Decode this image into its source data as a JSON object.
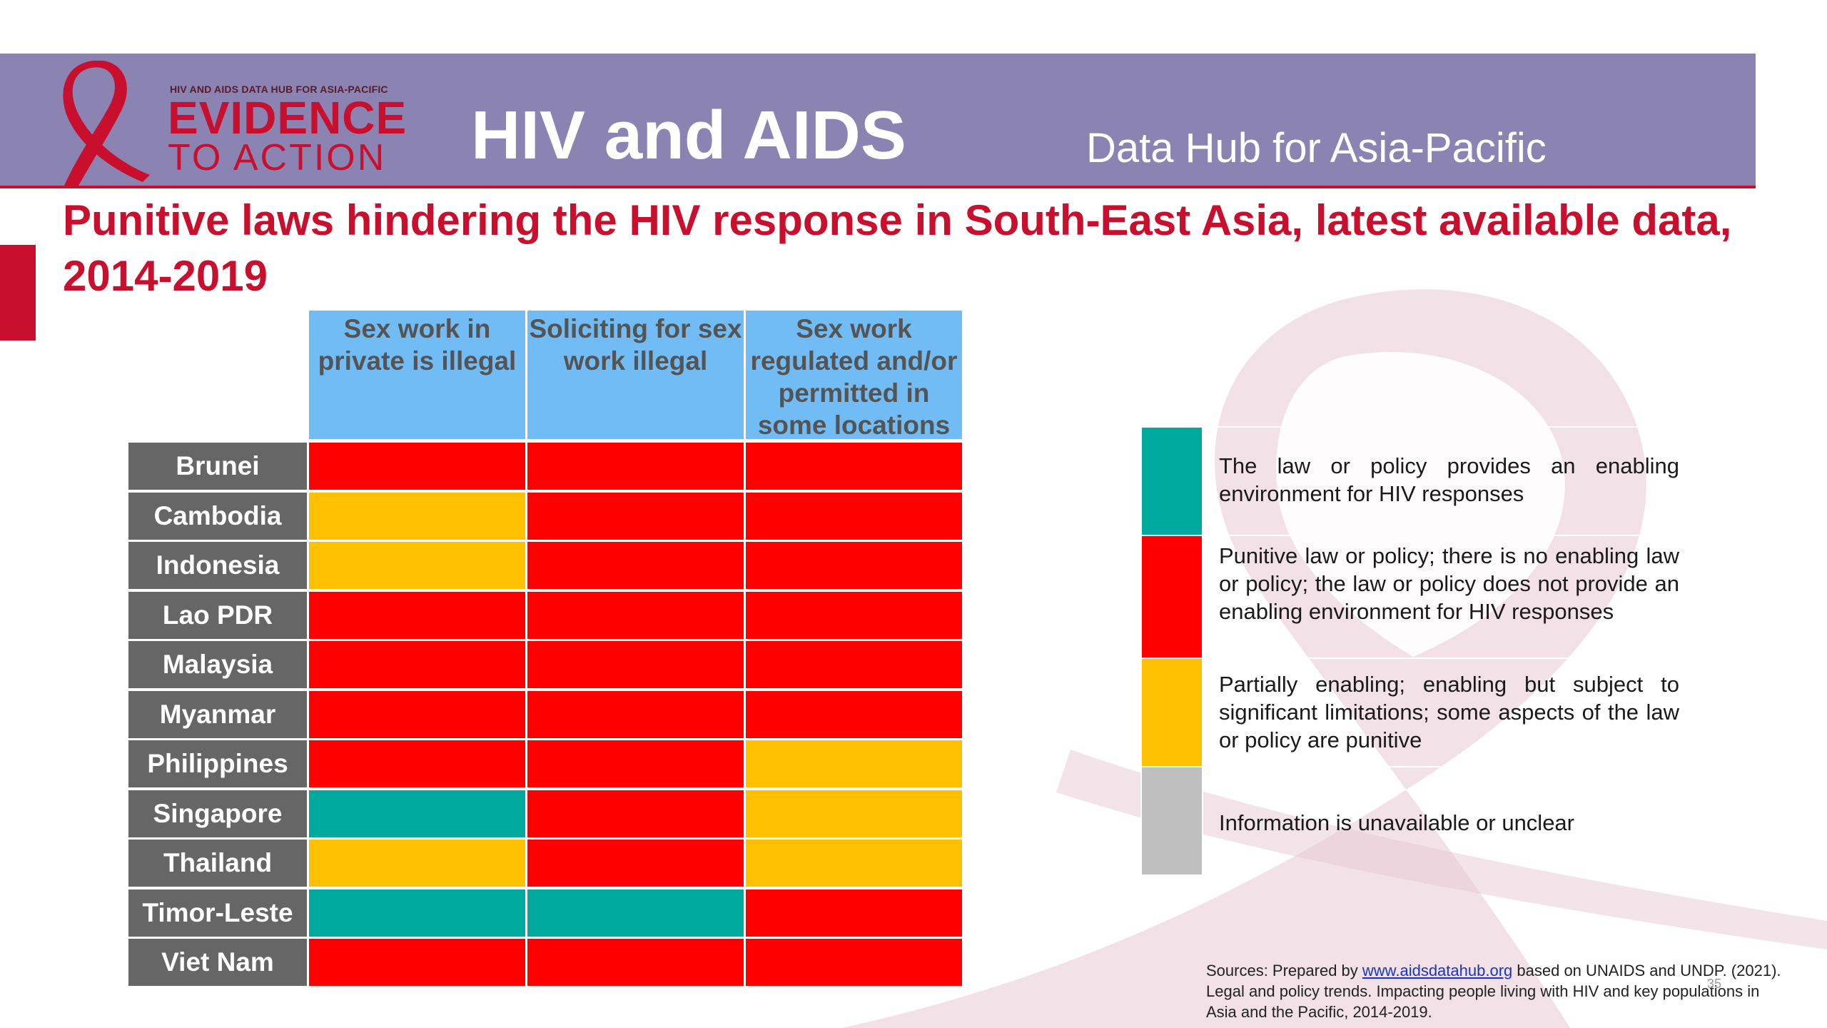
{
  "colors": {
    "header_band": "#8b84b3",
    "accent_red": "#c8102e",
    "column_header_bg": "#72bcf5",
    "row_label_bg": "#666666",
    "status_red": "#ff0000",
    "status_yellow": "#ffc000",
    "status_teal": "#00a99d",
    "status_grey": "#bfbfbf"
  },
  "logo": {
    "small_text": "HIV AND AIDS DATA HUB FOR ASIA-PACIFIC",
    "main_text": "EVIDENCE",
    "sub_text": "TO ACTION"
  },
  "header": {
    "title": "HIV and AIDS",
    "subtitle": "Data Hub for Asia-Pacific"
  },
  "page_title": "Punitive laws hindering the HIV response in South-East Asia, latest available data, 2014-2019",
  "table": {
    "columns": [
      "Sex work in private is illegal",
      "Soliciting for sex work illegal",
      "Sex work regulated and/or permitted in some locations"
    ],
    "rows": [
      {
        "country": "Brunei",
        "status": [
          "red",
          "red",
          "red"
        ]
      },
      {
        "country": "Cambodia",
        "status": [
          "yellow",
          "red",
          "red"
        ]
      },
      {
        "country": "Indonesia",
        "status": [
          "yellow",
          "red",
          "red"
        ]
      },
      {
        "country": "Lao PDR",
        "status": [
          "red",
          "red",
          "red"
        ]
      },
      {
        "country": "Malaysia",
        "status": [
          "red",
          "red",
          "red"
        ]
      },
      {
        "country": "Myanmar",
        "status": [
          "red",
          "red",
          "red"
        ]
      },
      {
        "country": "Philippines",
        "status": [
          "red",
          "red",
          "yellow"
        ]
      },
      {
        "country": "Singapore",
        "status": [
          "teal",
          "red",
          "yellow"
        ]
      },
      {
        "country": "Thailand",
        "status": [
          "yellow",
          "red",
          "yellow"
        ]
      },
      {
        "country": "Timor-Leste",
        "status": [
          "teal",
          "teal",
          "red"
        ]
      },
      {
        "country": "Viet Nam",
        "status": [
          "red",
          "red",
          "red"
        ]
      }
    ]
  },
  "legend": [
    {
      "color": "teal",
      "text": "The law or policy provides an enabling environment for HIV responses"
    },
    {
      "color": "red",
      "text": "Punitive law or policy; there is no enabling law or policy; the law or policy does not provide an enabling environment for HIV responses"
    },
    {
      "color": "yellow",
      "text": "Partially enabling; enabling but subject to significant limitations; some aspects of the law or policy are punitive"
    },
    {
      "color": "grey",
      "text": "Information is unavailable or unclear"
    }
  ],
  "sources": {
    "prefix": "Sources: Prepared by",
    "link_text": "www.aidsdatahub.org",
    "suffix": " based on UNAIDS and UNDP. (2021). Legal and policy trends. Impacting people living with HIV and key populations in Asia and the Pacific, 2014-2019."
  },
  "page_number": "35"
}
